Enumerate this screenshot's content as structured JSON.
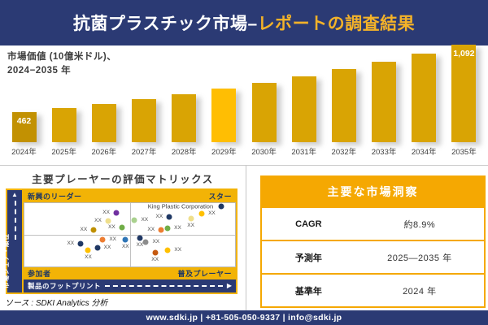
{
  "header": {
    "title_part1": "抗菌プラスチック市場–",
    "title_part2": "レポートの調査結果"
  },
  "chart_caption": {
    "line1": "市場価値 (10億米ドル)、",
    "line2": "2024−2035 年"
  },
  "chart_data": [
    {
      "type": "bar",
      "title": "市場価値 (10億米ドル)、2024−2035 年",
      "xlabel": "",
      "ylabel": "10億米ドル",
      "categories": [
        "2024年",
        "2025年",
        "2026年",
        "2027年",
        "2028年",
        "2029年",
        "2030年",
        "2031年",
        "2032年",
        "2033年",
        "2034年",
        "2035年"
      ],
      "values": [
        462,
        500,
        540,
        584,
        631,
        683,
        738,
        798,
        863,
        933,
        1009,
        1092
      ],
      "data_labels": {
        "2024年": "462",
        "2035年": "1,092"
      },
      "ylim": [
        0,
        1200
      ],
      "grid": false,
      "bar_color_default": "#D9A404",
      "bar_color_overrides": {
        "0": "#C29102",
        "5": "#FFBE03"
      }
    },
    {
      "type": "scatter",
      "title": "主要プレーヤーの評価マトリックス",
      "xlabel": "製品のフットプリント",
      "ylabel": "市場シェア・順位",
      "quadrants": {
        "top_left": "新興のリーダー",
        "top_right": "スター",
        "bottom_left": "参加者",
        "bottom_right": "普及プレーヤー"
      },
      "highlight_company": "King Plastic Corporation",
      "points": [
        {
          "x": 43.6,
          "y": 14.8,
          "color": "#7030A0",
          "label": "XX",
          "anchor": "left"
        },
        {
          "x": 39.7,
          "y": 28.8,
          "color": "#EFDF8C",
          "label": "XX",
          "anchor": "left"
        },
        {
          "x": 32.9,
          "y": 42.0,
          "color": "#BF9000",
          "label": "XX",
          "anchor": "left"
        },
        {
          "x": 46.2,
          "y": 37.9,
          "color": "#70AD47",
          "label": "XX",
          "anchor": "left"
        },
        {
          "x": 52.3,
          "y": 27.1,
          "color": "#A9D18E",
          "label": "XX",
          "anchor": "right"
        },
        {
          "x": 68.8,
          "y": 22.0,
          "color": "#1F3864",
          "label": "XX",
          "anchor": "left"
        },
        {
          "x": 79.0,
          "y": 24.0,
          "color": "#EFDF8C",
          "label": "XX",
          "anchor": "below"
        },
        {
          "x": 84.2,
          "y": 16.8,
          "color": "#FFC000",
          "label": "XX",
          "anchor": "right"
        },
        {
          "x": 93.5,
          "y": 4.8,
          "color": "#1F3864",
          "label": "King Plastic Corporation",
          "anchor": "company"
        },
        {
          "x": 64.9,
          "y": 42.0,
          "color": "#ED7D31",
          "label": "XX",
          "anchor": "left"
        },
        {
          "x": 68.0,
          "y": 40.0,
          "color": "#70AD47",
          "label": "XX",
          "anchor": "right"
        },
        {
          "x": 26.7,
          "y": 64.4,
          "color": "#1F3864",
          "label": "XX",
          "anchor": "left"
        },
        {
          "x": 30.3,
          "y": 74.0,
          "color": "#FFC000",
          "label": "XX",
          "anchor": "below"
        },
        {
          "x": 34.6,
          "y": 70.0,
          "color": "#203864",
          "label": "XX",
          "anchor": "right"
        },
        {
          "x": 37.2,
          "y": 58.0,
          "color": "#ED7D31",
          "label": "XX",
          "anchor": "right"
        },
        {
          "x": 48.0,
          "y": 58.0,
          "color": "#2E75B6",
          "label": "XX",
          "anchor": "below"
        },
        {
          "x": 54.8,
          "y": 54.7,
          "color": "#203864",
          "label": "XX",
          "anchor": "below"
        },
        {
          "x": 57.7,
          "y": 62.0,
          "color": "#8C8C8C",
          "label": "XX",
          "anchor": "right"
        },
        {
          "x": 62.0,
          "y": 78.8,
          "color": "#C55A11",
          "label": "XX",
          "anchor": "below"
        },
        {
          "x": 68.1,
          "y": 74.8,
          "color": "#FFC000",
          "label": "XX",
          "anchor": "right"
        }
      ]
    },
    {
      "type": "table",
      "title": "主要な市場洞察",
      "rows": [
        {
          "label": "CAGR",
          "value": "約8.9%"
        },
        {
          "label": "予測年",
          "value": "2025—2035 年"
        },
        {
          "label": "基準年",
          "value": "2024 年"
        }
      ]
    }
  ],
  "source": "ソース : SDKI Analytics 分析",
  "footer": "www.sdki.jp | +81-505-050-9337 | info@sdki.jp",
  "colors": {
    "navy": "#2B3A74",
    "header_accent_gold": "#F3B229",
    "bar_gold": "#D9A404",
    "bar_gold_dark": "#C29102",
    "bar_gold_bright": "#FFBE03",
    "matrix_frame_gold": "#F2B306",
    "table_gold": "#F5A802",
    "quadrant_text_navy": "#1F3864"
  }
}
